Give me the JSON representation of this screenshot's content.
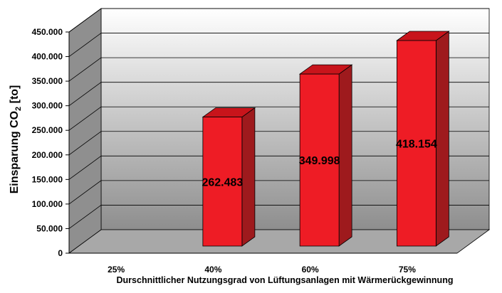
{
  "chart_data": {
    "type": "bar",
    "ylabel": "Einsparung CO2 [to]",
    "ylabel_main": "Einsparung CO",
    "ylabel_sub": "2",
    "ylabel_unit": " [to]",
    "xlabel": "Durschnittlicher Nutzungsgrad von  Lüftungsanlagen mit Wärmerückgewinnung",
    "categories": [
      "25%",
      "40%",
      "60%",
      "75%"
    ],
    "values": [
      0,
      262483,
      349998,
      418154
    ],
    "data_labels": [
      "",
      "262.483",
      "349.998",
      "418.154"
    ],
    "ylim": [
      0,
      450000
    ],
    "y_ticks": [
      0,
      50000,
      100000,
      150000,
      200000,
      250000,
      300000,
      350000,
      400000,
      450000
    ],
    "y_tick_labels": [
      "0",
      "50.000",
      "100.000",
      "150.000",
      "200.000",
      "250.000",
      "300.000",
      "350.000",
      "400.000",
      "450.000"
    ],
    "grid": true,
    "three_d": true,
    "colors": {
      "bar_front": "#ee1c25",
      "bar_side": "#9e1a1d",
      "bar_top": "#c8141b",
      "wall_top": "#ffffff",
      "wall_bottom": "#8e8e8e",
      "left_wall": "#8f8f8f",
      "floor": "#a8a8a8"
    }
  }
}
